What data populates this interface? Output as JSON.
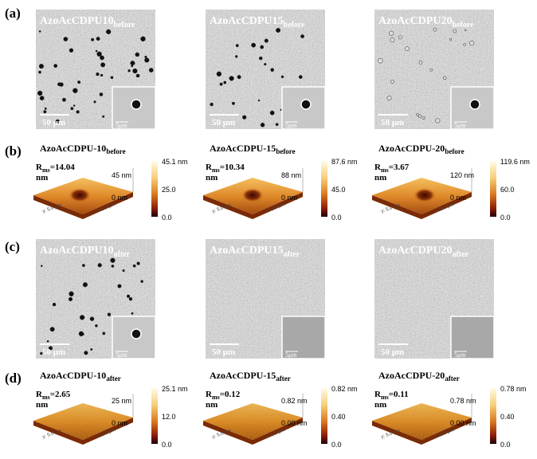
{
  "panels": [
    {
      "label": "(a)",
      "images": [
        {
          "name": "AzoAcCDPU10",
          "subscript": "before",
          "scale_bar": "50 μm",
          "inset_scale": "5μm"
        },
        {
          "name": "AzoAcCDPU15",
          "subscript": "before",
          "scale_bar": "50 μm",
          "inset_scale": "5μm"
        },
        {
          "name": "AzoAcCDPU20",
          "subscript": "before",
          "scale_bar": "50 μm",
          "inset_scale": "5μm"
        }
      ]
    },
    {
      "label": "(b)",
      "maps": [
        {
          "name": "AzoAcCDPU-10",
          "subscript": "before",
          "rms": "R",
          "rms_sub": "ms",
          "rms_value": "=14.04",
          "rms_unit": "nm",
          "z_top": "45 nm",
          "z_bottom": "0 nm",
          "colorbar": [
            "45.1 nm",
            "25.0",
            "0.0"
          ],
          "y_axis": "y: 5.0 μm",
          "x_axis": "x: 5.0 μm"
        },
        {
          "name": "AzoAcCDPU-15",
          "subscript": "before",
          "rms": "R",
          "rms_sub": "ms",
          "rms_value": "=10.34",
          "rms_unit": "nm",
          "z_top": "88 nm",
          "z_bottom": "0 nm",
          "colorbar": [
            "87.6 nm",
            "45.0",
            "0.0"
          ],
          "y_axis": "y: 5.0 μm",
          "x_axis": "x: 5.0 μm"
        },
        {
          "name": "AzoAcCDPU-20",
          "subscript": "before",
          "rms": "R",
          "rms_sub": "ms",
          "rms_value": "=3.67",
          "rms_unit": "nm",
          "z_top": "120 nm",
          "z_bottom": "0 nm",
          "colorbar": [
            "119.6 nm",
            "60.0",
            "0.0"
          ],
          "y_axis": "y: 5.0 μm",
          "x_axis": "x: 5.0 μm"
        }
      ]
    },
    {
      "label": "(c)",
      "images": [
        {
          "name": "AzoAcCDPU10",
          "subscript": "after",
          "scale_bar": "50 μm",
          "inset_scale": "5μm"
        },
        {
          "name": "AzoAcCDPU15",
          "subscript": "after",
          "scale_bar": "50 μm",
          "inset_scale": "5μm"
        },
        {
          "name": "AzoAcCDPU20",
          "subscript": "after",
          "scale_bar": "50 μm",
          "inset_scale": "5μm"
        }
      ]
    },
    {
      "label": "(d)",
      "maps": [
        {
          "name": "AzoAcCDPU-10",
          "subscript": "after",
          "rms": "R",
          "rms_sub": "ms",
          "rms_value": "=2.65",
          "rms_unit": "nm",
          "z_top": "25 nm",
          "z_bottom": "0 nm",
          "colorbar": [
            "25.1 nm",
            "12.0",
            "0.0"
          ],
          "y_axis": "y: 5.0 μm",
          "x_axis": "x: 5.0 μm"
        },
        {
          "name": "AzoAcCDPU-15",
          "subscript": "after",
          "rms": "R",
          "rms_sub": "ms",
          "rms_value": "=0.12",
          "rms_unit": "nm",
          "z_top": "0.82 nm",
          "z_bottom": "0.00 nm",
          "colorbar": [
            "0.82 nm",
            "0.40",
            "0.0"
          ],
          "y_axis": "y: 5.0 μm",
          "x_axis": "x: 5.0 μm"
        },
        {
          "name": "AzoAcCDPU-20",
          "subscript": "after",
          "rms": "R",
          "rms_sub": "ms",
          "rms_value": "=0.11",
          "rms_unit": "nm",
          "z_top": "0.78 nm",
          "z_bottom": "0.00 nm",
          "colorbar": [
            "0.78 nm",
            "0.40",
            "0.0"
          ],
          "y_axis": "y: 5.0 μm",
          "x_axis": "x: 5.0 μm"
        }
      ]
    }
  ]
}
